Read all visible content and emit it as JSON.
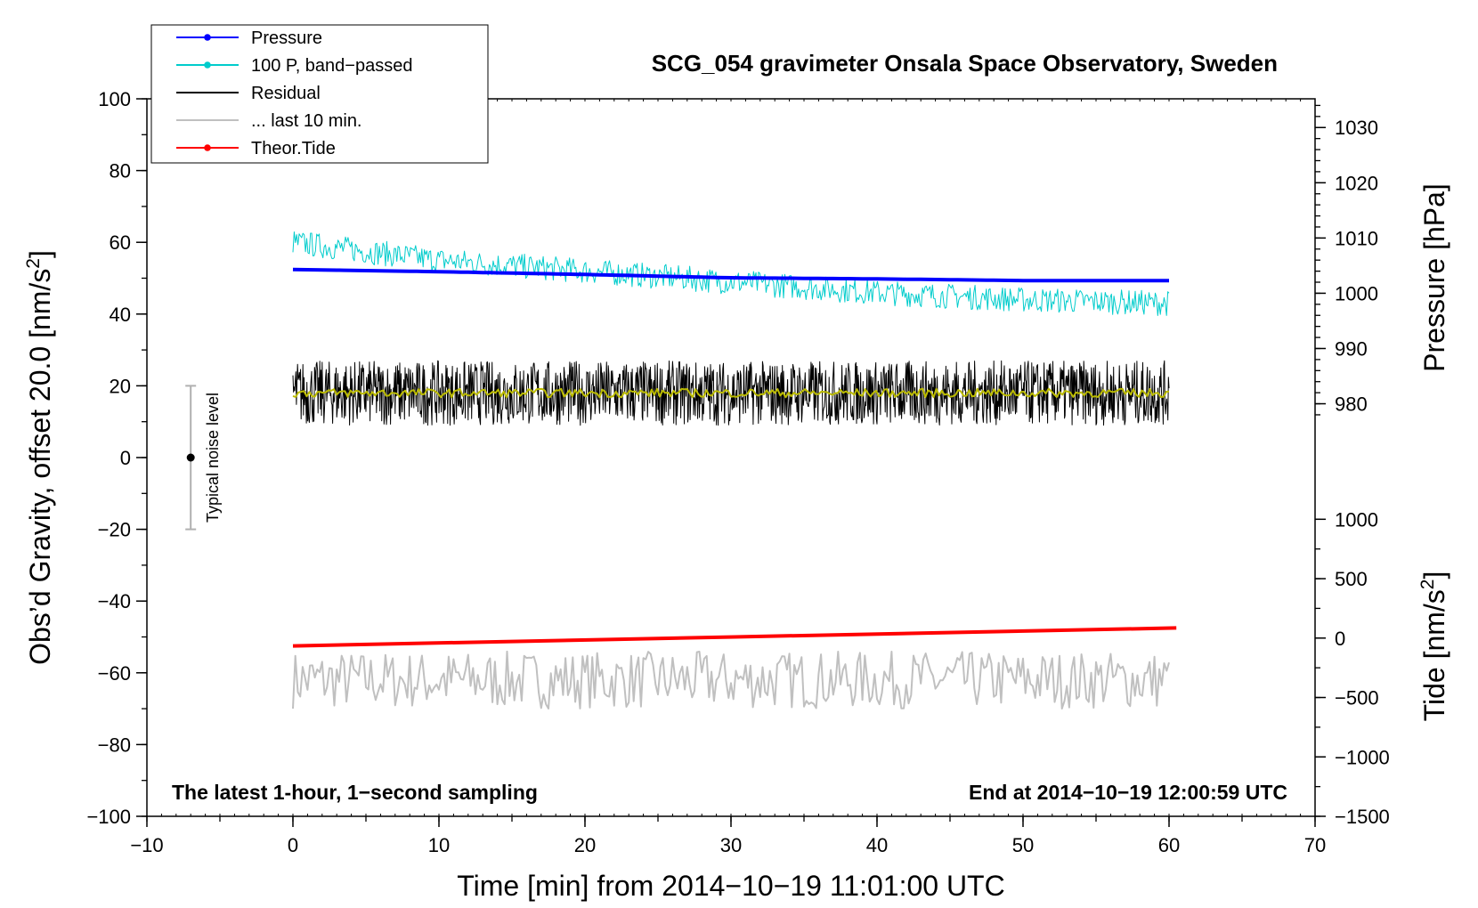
{
  "chart_data": {
    "type": "line",
    "title": "SCG_054 gravimeter Onsala Space Observatory, Sweden",
    "xlabel": "Time [min] from 2014−10−19 11:01:00 UTC",
    "ylabel_left": "Obs’d Gravity, offset 20.0 [nm/s",
    "ylabel_left_sup": "2",
    "ylabel_left_close": "]",
    "ylabel_pressure": "Pressure [hPa]",
    "ylabel_tide": "Tide [nm/s",
    "ylabel_tide_sup": "2",
    "ylabel_tide_close": "]",
    "xlim": [
      -10,
      70
    ],
    "ylim_left": [
      -100,
      100
    ],
    "x_ticks": [
      -10,
      0,
      10,
      20,
      30,
      40,
      50,
      60,
      70
    ],
    "x_tick_labels": [
      "−10",
      "0",
      "10",
      "20",
      "30",
      "40",
      "50",
      "60",
      "70"
    ],
    "y_ticks_left": [
      -100,
      -80,
      -60,
      -40,
      -20,
      0,
      20,
      40,
      60,
      80,
      100
    ],
    "y_tick_labels_left": [
      "−100",
      "−80",
      "−60",
      "−40",
      "−20",
      "0",
      "20",
      "40",
      "60",
      "80",
      "100"
    ],
    "pressure_axis": {
      "ticks": [
        980,
        990,
        1000,
        1010,
        1020,
        1030
      ],
      "tick_labels": [
        "980",
        "990",
        "1000",
        "1010",
        "1020",
        "1030"
      ],
      "map": {
        "value_a": 980,
        "left_a": 15.0,
        "value_b": 1030,
        "left_b": 92.0
      }
    },
    "tide_axis": {
      "ticks": [
        -1500,
        -1000,
        -500,
        0,
        500,
        1000
      ],
      "tick_labels": [
        "−1500",
        "−1000",
        "−500",
        "0",
        "500",
        "1000"
      ],
      "map": {
        "value_a": -1500,
        "left_a": -100.0,
        "value_b": 1000,
        "left_b": -17.2
      }
    },
    "note_left": "The latest 1-hour, 1−second sampling",
    "note_right": "End at 2014−10−19 12:00:59 UTC",
    "noise_bar": {
      "x": -7,
      "center": 0,
      "low": -20,
      "high": 20,
      "label": "Typical noise level"
    },
    "legend": [
      {
        "label": "Pressure",
        "color": "#0000ff",
        "marker": true
      },
      {
        "label": "100 P, band−passed",
        "color": "#00cccc",
        "marker": true
      },
      {
        "label": "Residual",
        "color": "#000000",
        "marker": false
      },
      {
        "label": "... last 10 min.",
        "color": "#c0c0c0",
        "marker": false
      },
      {
        "label": "Theor.Tide",
        "color": "#ff0000",
        "marker": true
      }
    ],
    "series": [
      {
        "name": "Pressure",
        "axis": "pressure",
        "color": "#0000ff",
        "x": [
          0,
          10,
          20,
          30,
          40,
          50,
          60
        ],
        "values": [
          1004.3,
          1003.9,
          1003.4,
          1002.8,
          1002.6,
          1002.3,
          1002.3
        ]
      },
      {
        "name": "100 P, band−passed",
        "axis": "left",
        "color": "#00cccc",
        "x": [
          0,
          10,
          20,
          30,
          40,
          50,
          60
        ],
        "values": [
          60,
          55,
          52,
          49,
          46,
          44,
          43
        ],
        "noise_amplitude": 3.5
      },
      {
        "name": "Residual",
        "axis": "left",
        "color": "#000000",
        "x": [
          0,
          10,
          20,
          30,
          40,
          50,
          60
        ],
        "values": [
          18,
          18,
          18,
          18,
          18,
          18,
          18
        ],
        "noise_amplitude": 9
      },
      {
        "name": "Residual (smoothed)",
        "axis": "left",
        "color": "#bbbb00",
        "x": [
          0,
          10,
          20,
          30,
          40,
          50,
          60
        ],
        "values": [
          18,
          18,
          18,
          18,
          18,
          18,
          18
        ],
        "noise_amplitude": 1.2
      },
      {
        "name": "... last 10 min.",
        "axis": "left",
        "color": "#c0c0c0",
        "x": [
          0,
          60
        ],
        "values": [
          -62,
          -62
        ],
        "noise_amplitude": 8
      },
      {
        "name": "Theor.Tide",
        "axis": "left",
        "color": "#ff0000",
        "x": [
          0,
          60.5
        ],
        "values": [
          -52.5,
          -47.5
        ]
      }
    ],
    "legend_placement": "top-left",
    "grid": false
  }
}
